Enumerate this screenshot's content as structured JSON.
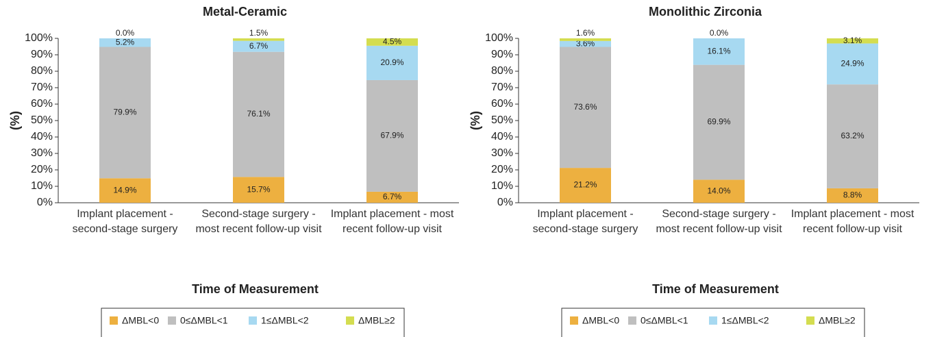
{
  "chart_data": [
    {
      "type": "bar",
      "stacked": true,
      "title": "Metal-Ceramic",
      "xlabel": "Time of Measurement",
      "ylabel": "(%)",
      "categories": [
        "Implant placement - second-stage surgery",
        "Second-stage surgery - most recent follow-up visit",
        "Implant placement - most recent follow-up visit"
      ],
      "ylim": [
        0,
        100
      ],
      "yticks": [
        {
          "value": 0,
          "label": "0%"
        },
        {
          "value": 10,
          "label": "10%"
        },
        {
          "value": 20,
          "label": "20%"
        },
        {
          "value": 30,
          "label": "30%"
        },
        {
          "value": 40,
          "label": "40%"
        },
        {
          "value": 50,
          "label": "50%"
        },
        {
          "value": 60,
          "label": "60%"
        },
        {
          "value": 70,
          "label": "70%"
        },
        {
          "value": 80,
          "label": "80%"
        },
        {
          "value": 90,
          "label": "90%"
        },
        {
          "value": 100,
          "label": "100%"
        }
      ],
      "legend": "bottom",
      "series": [
        {
          "name": "ΔMBL<0",
          "color": "#edb040",
          "values": [
            14.9,
            15.7,
            6.7
          ],
          "value_labels": [
            "14.9%",
            "15.7%",
            "6.7%"
          ]
        },
        {
          "name": "0≤ΔMBL<1",
          "color": "#bfbfbf",
          "values": [
            79.9,
            76.1,
            67.9
          ],
          "value_labels": [
            "79.9%",
            "76.1%",
            "67.9%"
          ]
        },
        {
          "name": "1≤ΔMBL<2",
          "color": "#a7d9f1",
          "values": [
            5.2,
            6.7,
            20.9
          ],
          "value_labels": [
            "5.2%",
            "6.7%",
            "20.9%"
          ]
        },
        {
          "name": "ΔMBL≥2",
          "color": "#d4dd50",
          "values": [
            0.0,
            1.5,
            4.5
          ],
          "value_labels": [
            "0.0%",
            "1.5%",
            "4.5%"
          ]
        }
      ]
    },
    {
      "type": "bar",
      "stacked": true,
      "title": "Monolithic Zirconia",
      "xlabel": "Time of Measurement",
      "ylabel": "(%)",
      "categories": [
        "Implant placement - second-stage surgery",
        "Second-stage surgery - most recent follow-up visit",
        "Implant placement - most recent follow-up visit"
      ],
      "ylim": [
        0,
        100
      ],
      "yticks": [
        {
          "value": 0,
          "label": "0%"
        },
        {
          "value": 10,
          "label": "10%"
        },
        {
          "value": 20,
          "label": "20%"
        },
        {
          "value": 30,
          "label": "30%"
        },
        {
          "value": 40,
          "label": "40%"
        },
        {
          "value": 50,
          "label": "50%"
        },
        {
          "value": 60,
          "label": "60%"
        },
        {
          "value": 70,
          "label": "70%"
        },
        {
          "value": 80,
          "label": "80%"
        },
        {
          "value": 90,
          "label": "90%"
        },
        {
          "value": 100,
          "label": "100%"
        }
      ],
      "legend": "bottom",
      "series": [
        {
          "name": "ΔMBL<0",
          "color": "#edb040",
          "values": [
            21.2,
            14.0,
            8.8
          ],
          "value_labels": [
            "21.2%",
            "14.0%",
            "8.8%"
          ]
        },
        {
          "name": "0≤ΔMBL<1",
          "color": "#bfbfbf",
          "values": [
            73.6,
            69.9,
            63.2
          ],
          "value_labels": [
            "73.6%",
            "69.9%",
            "63.2%"
          ]
        },
        {
          "name": "1≤ΔMBL<2",
          "color": "#a7d9f1",
          "values": [
            3.6,
            16.1,
            24.9
          ],
          "value_labels": [
            "3.6%",
            "16.1%",
            "24.9%"
          ]
        },
        {
          "name": "ΔMBL≥2",
          "color": "#d4dd50",
          "values": [
            1.6,
            0.0,
            3.1
          ],
          "value_labels": [
            "1.6%",
            "0.0%",
            "3.1%"
          ]
        }
      ]
    }
  ]
}
